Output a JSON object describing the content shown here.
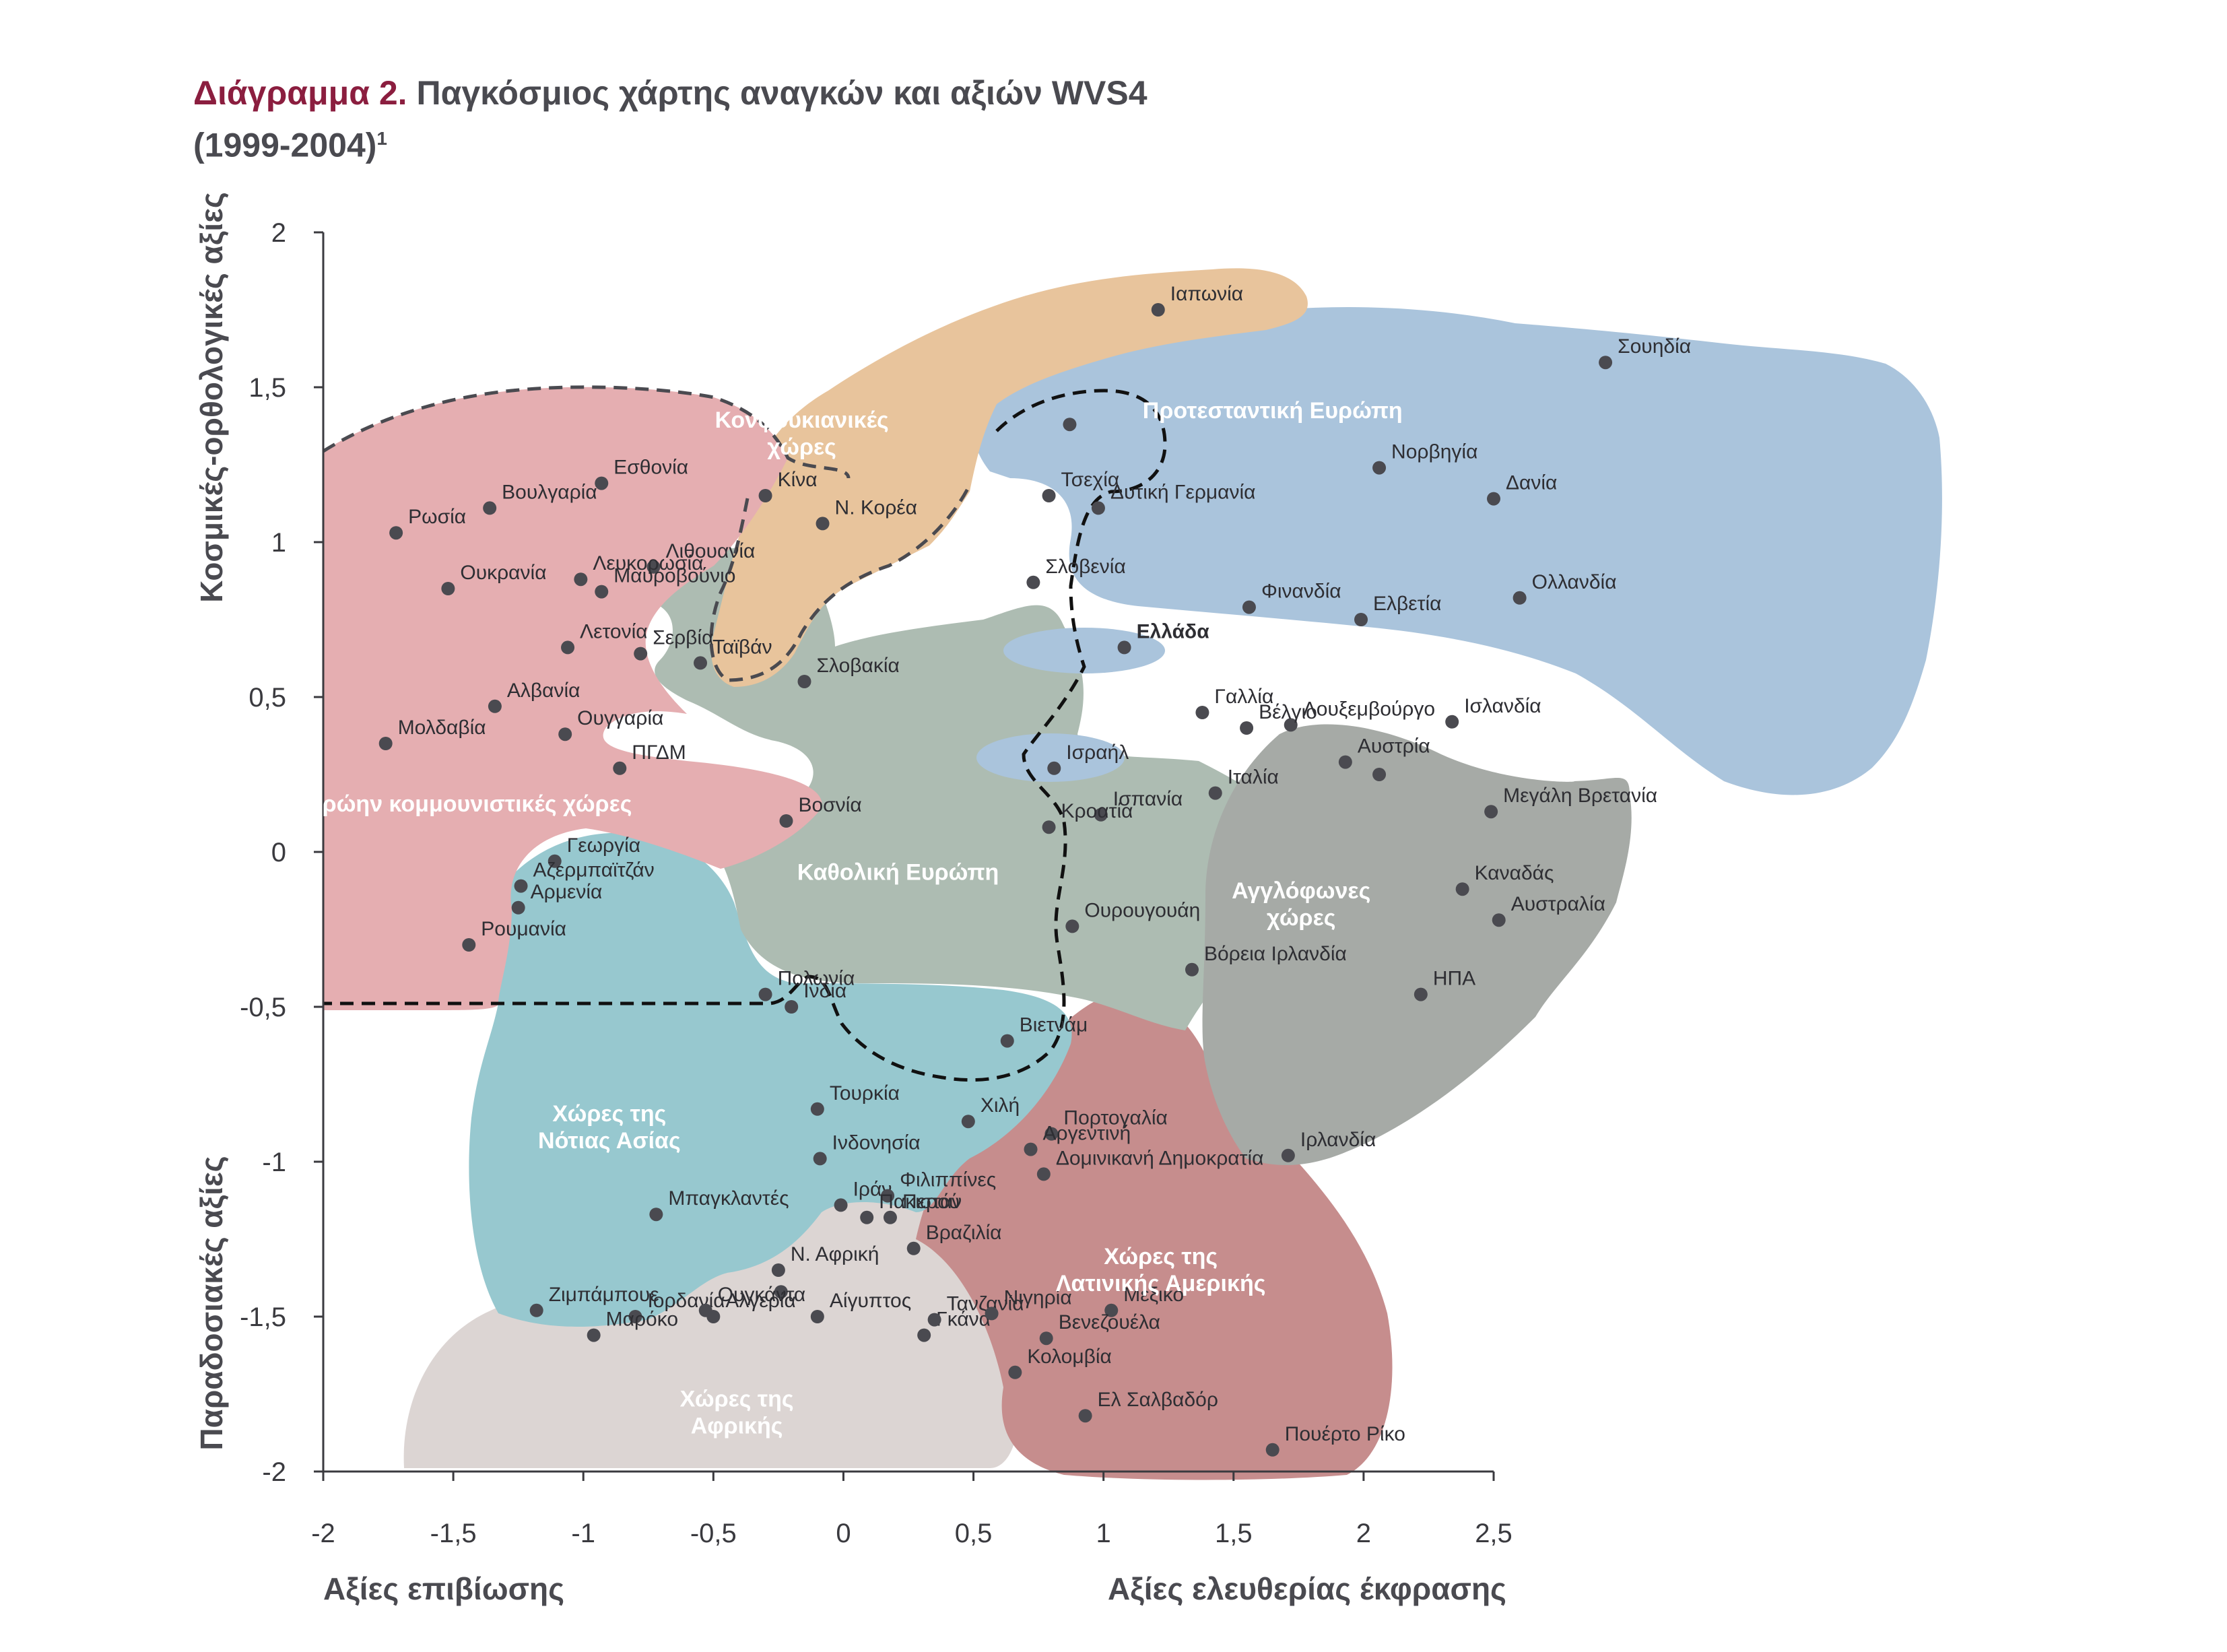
{
  "title": {
    "lead": "Διάγραμμα 2.",
    "rest": "Παγκόσμιος χάρτης αναγκών και αξιών WVS4",
    "years": "(1999-2004)",
    "footnote": "1"
  },
  "chart_data": {
    "type": "scatter",
    "xlim": [
      -2,
      2.5
    ],
    "ylim": [
      -2,
      2
    ],
    "x_ticks": [
      "-2",
      "-1,5",
      "-1",
      "-0,5",
      "0",
      "0,5",
      "1",
      "1,5",
      "2",
      "2,5"
    ],
    "y_ticks": [
      "2",
      "1,5",
      "1",
      "0,5",
      "0",
      "-0,5",
      "-1",
      "-1,5",
      "-2"
    ],
    "xlabel_left": "Αξίες επιβίωσης",
    "xlabel_right": "Αξίες ελευθερίας έκφρασης",
    "ylabel_top": "Κοσμικές-ορθολογικές αξίες",
    "ylabel_bottom": "Παραδοσιακές αξίες",
    "groups": [
      {
        "name": "Προτεσταντική Ευρώπη",
        "color": "#aac4dc"
      },
      {
        "name": "Καθολική Ευρώπη",
        "color": "#adbcb2"
      },
      {
        "name": "Αγγλόφωνες χώρες",
        "color": "#a6aaa6"
      },
      {
        "name": "Κονφουκιανικές χώρες",
        "color": "#e8c49c"
      },
      {
        "name": "Πρώην κομμουνιστικές χώρες",
        "color": "#e5aeb1"
      },
      {
        "name": "Χώρες της Νότιας Ασίας",
        "color": "#97c8cf"
      },
      {
        "name": "Χώρες της Λατινικής Αμερικής",
        "color": "#c68d8d"
      },
      {
        "name": "Χώρες της Αφρικής",
        "color": "#dcd5d3"
      }
    ],
    "group_labels": [
      {
        "lines": [
          "Κονφουκιανικές",
          "χώρες"
        ],
        "x": -0.16,
        "y": 1.37
      },
      {
        "lines": [
          "Προτεσταντική Ευρώπη"
        ],
        "x": 1.65,
        "y": 1.4
      },
      {
        "lines": [
          "Πρώην κομμουνιστικές χώρες"
        ],
        "x": -1.44,
        "y": 0.13
      },
      {
        "lines": [
          "Καθολική Ευρώπη"
        ],
        "x": 0.21,
        "y": -0.09
      },
      {
        "lines": [
          "Αγγλόφωνες",
          "χώρες"
        ],
        "x": 1.76,
        "y": -0.15
      },
      {
        "lines": [
          "Χώρες της",
          "Νότιας Ασίας"
        ],
        "x": -0.9,
        "y": -0.87
      },
      {
        "lines": [
          "Χώρες της",
          "Λατινικής Αμερικής"
        ],
        "x": 1.22,
        "y": -1.33
      },
      {
        "lines": [
          "Χώρες της",
          "Αφρικής"
        ],
        "x": -0.41,
        "y": -1.79
      }
    ],
    "countries": [
      {
        "name": "Ιαπωνία",
        "x": 1.21,
        "y": 1.75
      },
      {
        "name": "Σουηδία",
        "x": 2.93,
        "y": 1.58
      },
      {
        "name": "",
        "x": 0.87,
        "y": 1.38
      },
      {
        "name": "Νορβηγία",
        "x": 2.06,
        "y": 1.24
      },
      {
        "name": "Δανία",
        "x": 2.5,
        "y": 1.14
      },
      {
        "name": "Τσεχία",
        "x": 0.79,
        "y": 1.15
      },
      {
        "name": "Δυτική Γερμανία",
        "x": 0.98,
        "y": 1.11
      },
      {
        "name": "Ολλανδία",
        "x": 2.6,
        "y": 0.82
      },
      {
        "name": "Φινανδία",
        "x": 1.56,
        "y": 0.79
      },
      {
        "name": "Ελβετία",
        "x": 1.99,
        "y": 0.75
      },
      {
        "name": "Σλοβενία",
        "x": 0.73,
        "y": 0.87
      },
      {
        "name": "Ελλάδα",
        "x": 1.08,
        "y": 0.66
      },
      {
        "name": "Ισλανδία",
        "x": 2.34,
        "y": 0.42
      },
      {
        "name": "Λουξεμβούργο",
        "x": 1.72,
        "y": 0.41
      },
      {
        "name": "Γαλλία",
        "x": 1.38,
        "y": 0.45
      },
      {
        "name": "Βέλγιο",
        "x": 1.55,
        "y": 0.4
      },
      {
        "name": "Αυστρία",
        "x": 1.93,
        "y": 0.29
      },
      {
        "name": "Ισραήλ",
        "x": 0.81,
        "y": 0.27
      },
      {
        "name": "",
        "x": 2.06,
        "y": 0.25
      },
      {
        "name": "Ιταλία",
        "x": 1.43,
        "y": 0.19
      },
      {
        "name": "Μεγάλη Βρετανία",
        "x": 2.49,
        "y": 0.13
      },
      {
        "name": "Ισπανία",
        "x": 0.99,
        "y": 0.12
      },
      {
        "name": "Κροατία",
        "x": 0.79,
        "y": 0.08
      },
      {
        "name": "Καναδάς",
        "x": 2.38,
        "y": -0.12
      },
      {
        "name": "Αυστραλία",
        "x": 2.52,
        "y": -0.22
      },
      {
        "name": "Ουρουγουάη",
        "x": 0.88,
        "y": -0.24
      },
      {
        "name": "Βόρεια Ιρλανδία",
        "x": 1.34,
        "y": -0.38
      },
      {
        "name": "ΗΠΑ",
        "x": 2.22,
        "y": -0.46
      },
      {
        "name": "Βιετνάμ",
        "x": 0.63,
        "y": -0.61
      },
      {
        "name": "Κίνα",
        "x": -0.3,
        "y": 1.15
      },
      {
        "name": "Ν. Κορέα",
        "x": -0.08,
        "y": 1.06
      },
      {
        "name": "Ταϊβάν",
        "x": -0.55,
        "y": 0.61
      },
      {
        "name": "Σλοβακία",
        "x": -0.15,
        "y": 0.55
      },
      {
        "name": "Εσθονία",
        "x": -0.93,
        "y": 1.19
      },
      {
        "name": "Βουλγαρία",
        "x": -1.36,
        "y": 1.11
      },
      {
        "name": "Ρωσία",
        "x": -1.72,
        "y": 1.03
      },
      {
        "name": "Λιθουανία",
        "x": -0.73,
        "y": 0.92
      },
      {
        "name": "Λευκορωσία",
        "x": -1.01,
        "y": 0.88
      },
      {
        "name": "Ουκρανία",
        "x": -1.52,
        "y": 0.85
      },
      {
        "name": "Μαυροβούνιο",
        "x": -0.93,
        "y": 0.84
      },
      {
        "name": "Λετονία",
        "x": -1.06,
        "y": 0.66
      },
      {
        "name": "Σερβία",
        "x": -0.78,
        "y": 0.64
      },
      {
        "name": "Αλβανία",
        "x": -1.34,
        "y": 0.47
      },
      {
        "name": "Μολδαβία",
        "x": -1.76,
        "y": 0.35
      },
      {
        "name": "Ουγγαρία",
        "x": -1.07,
        "y": 0.38
      },
      {
        "name": "ΠΓΔΜ",
        "x": -0.86,
        "y": 0.27
      },
      {
        "name": "Βοσνία",
        "x": -0.22,
        "y": 0.1
      },
      {
        "name": "Γεωργία",
        "x": -1.11,
        "y": -0.03
      },
      {
        "name": "Αζερμπαϊτζάν",
        "x": -1.24,
        "y": -0.11
      },
      {
        "name": "Αρμενία",
        "x": -1.25,
        "y": -0.18
      },
      {
        "name": "Ρουμανία",
        "x": -1.44,
        "y": -0.3
      },
      {
        "name": "Πολωνία",
        "x": -0.3,
        "y": -0.46
      },
      {
        "name": "Ινδία",
        "x": -0.2,
        "y": -0.5
      },
      {
        "name": "Τουρκία",
        "x": -0.1,
        "y": -0.83
      },
      {
        "name": "Ινδονησία",
        "x": -0.09,
        "y": -0.99
      },
      {
        "name": "Μπαγκλαντές",
        "x": -0.72,
        "y": -1.17
      },
      {
        "name": "Ιράν",
        "x": -0.01,
        "y": -1.14
      },
      {
        "name": "Φιλιππίνες",
        "x": 0.17,
        "y": -1.11
      },
      {
        "name": "Πακιστάν",
        "x": 0.09,
        "y": -1.18
      },
      {
        "name": "Περού",
        "x": 0.18,
        "y": -1.18
      },
      {
        "name": "Βραζιλία",
        "x": 0.27,
        "y": -1.28
      },
      {
        "name": "Ν. Αφρική",
        "x": -0.25,
        "y": -1.35
      },
      {
        "name": "Ιορδανία",
        "x": -0.8,
        "y": -1.5
      },
      {
        "name": "",
        "x": -0.24,
        "y": -1.42
      },
      {
        "name": "Ζιμπάμπουε",
        "x": -1.18,
        "y": -1.48
      },
      {
        "name": "Ουγκάντα",
        "x": -0.53,
        "y": -1.48
      },
      {
        "name": "Αλγερία",
        "x": -0.5,
        "y": -1.5
      },
      {
        "name": "Μαρόκο",
        "x": -0.96,
        "y": -1.56
      },
      {
        "name": "Αίγυπτος",
        "x": -0.1,
        "y": -1.5
      },
      {
        "name": "Γκάνα",
        "x": 0.31,
        "y": -1.56
      },
      {
        "name": "Τανζανία",
        "x": 0.35,
        "y": -1.51
      },
      {
        "name": "Νιγηρία",
        "x": 0.57,
        "y": -1.49
      },
      {
        "name": "Χιλή",
        "x": 0.48,
        "y": -0.87
      },
      {
        "name": "Πορτογαλία",
        "x": 0.8,
        "y": -0.91
      },
      {
        "name": "Αργεντινή",
        "x": 0.72,
        "y": -0.96
      },
      {
        "name": "Δομινικανή Δημοκρατία",
        "x": 0.77,
        "y": -1.04
      },
      {
        "name": "Ιρλανδία",
        "x": 1.71,
        "y": -0.98
      },
      {
        "name": "Μεξικό",
        "x": 1.03,
        "y": -1.48
      },
      {
        "name": "Βενεζουέλα",
        "x": 0.78,
        "y": -1.57
      },
      {
        "name": "Κολομβία",
        "x": 0.66,
        "y": -1.68
      },
      {
        "name": "Ελ Σαλβαδόρ",
        "x": 0.93,
        "y": -1.82
      },
      {
        "name": "Πουέρτο Ρίκο",
        "x": 1.65,
        "y": -1.93
      }
    ]
  }
}
